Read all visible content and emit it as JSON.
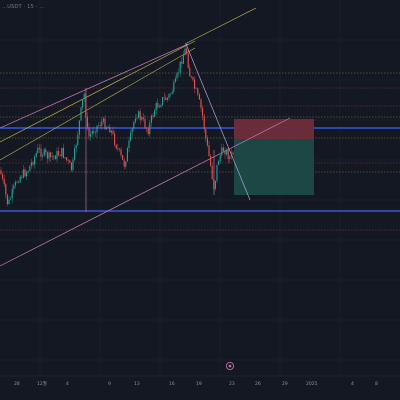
{
  "header": {
    "symbol_info": "…USDT · 15 · …"
  },
  "x_axis_labels": [
    "28",
    "12월",
    "4",
    "9",
    "13",
    "16",
    "19",
    "23",
    "26",
    "29",
    "2025",
    "4",
    "8"
  ],
  "colors": {
    "background": "#141823",
    "grid": "#1e2433",
    "candle_up": "#26a69a",
    "candle_down": "#ef5350",
    "horizontal_line_blue": "#3658d8",
    "horizontal_line_red_dotted": "#8d3b49",
    "horizontal_line_yellow_dotted": "#8e7d36",
    "trend_line_yellow": "#b8b24a",
    "trend_line_pink": "#c87bb8",
    "trend_line_lavender": "#a7a7dc",
    "stop_zone": "#6f2d3a",
    "target_zone": "#1d4a48"
  },
  "icons": {
    "replay": "replay-icon"
  }
}
